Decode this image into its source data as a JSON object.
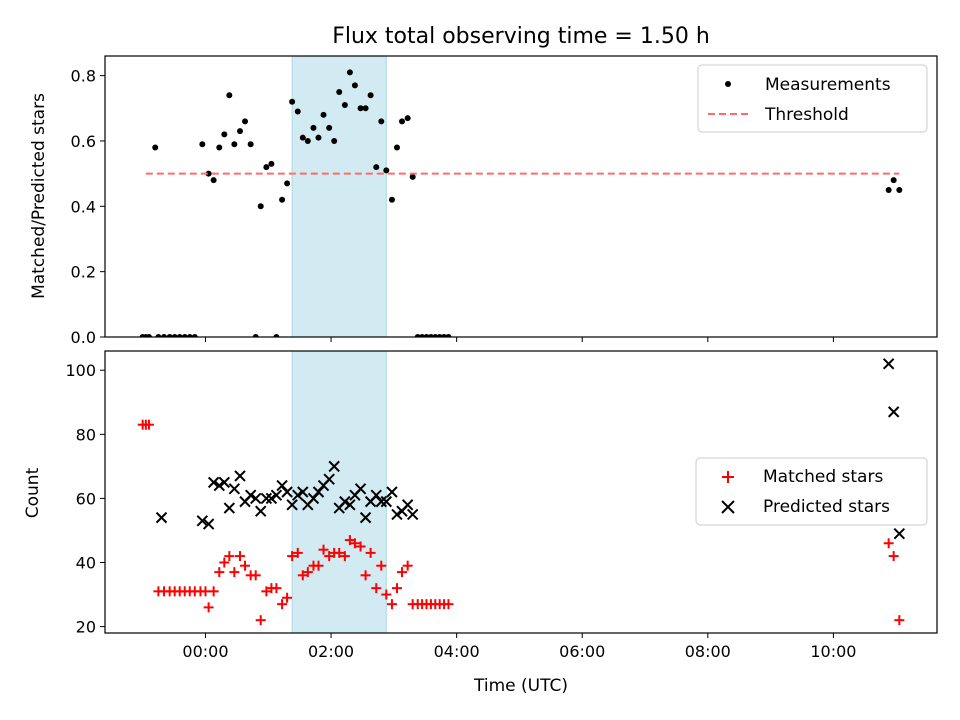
{
  "chart_data": [
    {
      "type": "scatter",
      "title": "Flux total observing time = 1.50 h",
      "xlabel": "",
      "ylabel": "Matched/Predicted stars",
      "xlim": [
        -1.6,
        11.65
      ],
      "ylim": [
        0,
        0.86
      ],
      "yticks": [
        0.0,
        0.2,
        0.4,
        0.6,
        0.8
      ],
      "ytick_labels": [
        "0.0",
        "0.2",
        "0.4",
        "0.6",
        "0.8"
      ],
      "shaded_region": {
        "x_start": 1.38,
        "x_end": 2.88,
        "color": "#add8e6"
      },
      "legend": {
        "location": "top-right",
        "entries": [
          "Measurements",
          "Threshold"
        ]
      },
      "series": [
        {
          "name": "Measurements",
          "marker": "dot",
          "color": "#000000",
          "points": [
            [
              -1.0,
              0.0
            ],
            [
              -0.95,
              0.0
            ],
            [
              -0.9,
              0.0
            ],
            [
              -0.75,
              0.0
            ],
            [
              -0.66,
              0.0
            ],
            [
              -0.57,
              0.0
            ],
            [
              -0.49,
              0.0
            ],
            [
              -0.41,
              0.0
            ],
            [
              -0.33,
              0.0
            ],
            [
              -0.25,
              0.0
            ],
            [
              -0.17,
              0.0
            ],
            [
              -0.8,
              0.58
            ],
            [
              -0.05,
              0.59
            ],
            [
              0.05,
              0.5
            ],
            [
              0.13,
              0.48
            ],
            [
              0.22,
              0.58
            ],
            [
              0.3,
              0.62
            ],
            [
              0.38,
              0.74
            ],
            [
              0.46,
              0.59
            ],
            [
              0.55,
              0.63
            ],
            [
              0.63,
              0.66
            ],
            [
              0.72,
              0.59
            ],
            [
              0.8,
              0.0
            ],
            [
              0.88,
              0.4
            ],
            [
              0.97,
              0.52
            ],
            [
              1.05,
              0.53
            ],
            [
              1.13,
              0.0
            ],
            [
              1.22,
              0.42
            ],
            [
              1.3,
              0.47
            ],
            [
              1.38,
              0.72
            ],
            [
              1.47,
              0.69
            ],
            [
              1.55,
              0.61
            ],
            [
              1.63,
              0.6
            ],
            [
              1.72,
              0.64
            ],
            [
              1.8,
              0.61
            ],
            [
              1.88,
              0.68
            ],
            [
              1.97,
              0.64
            ],
            [
              2.05,
              0.6
            ],
            [
              2.13,
              0.75
            ],
            [
              2.22,
              0.71
            ],
            [
              2.3,
              0.81
            ],
            [
              2.38,
              0.77
            ],
            [
              2.47,
              0.7
            ],
            [
              2.55,
              0.7
            ],
            [
              2.63,
              0.74
            ],
            [
              2.72,
              0.52
            ],
            [
              2.8,
              0.66
            ],
            [
              2.88,
              0.51
            ],
            [
              2.97,
              0.42
            ],
            [
              3.05,
              0.58
            ],
            [
              3.13,
              0.66
            ],
            [
              3.22,
              0.67
            ],
            [
              3.3,
              0.49
            ],
            [
              3.38,
              0.0
            ],
            [
              3.45,
              0.0
            ],
            [
              3.52,
              0.0
            ],
            [
              3.59,
              0.0
            ],
            [
              3.66,
              0.0
            ],
            [
              3.73,
              0.0
            ],
            [
              3.8,
              0.0
            ],
            [
              3.87,
              0.0
            ],
            [
              10.88,
              0.45
            ],
            [
              10.96,
              0.48
            ],
            [
              11.05,
              0.45
            ]
          ]
        },
        {
          "name": "Threshold",
          "style": "dashed",
          "color": "#ff6b6b",
          "x": [
            -0.95,
            11.05
          ],
          "y": [
            0.5,
            0.5
          ]
        }
      ]
    },
    {
      "type": "scatter",
      "title": "",
      "xlabel": "Time (UTC)",
      "ylabel": "Count",
      "xlim": [
        -1.6,
        11.65
      ],
      "ylim": [
        18,
        106
      ],
      "yticks": [
        20,
        40,
        60,
        80,
        100
      ],
      "ytick_labels": [
        "20",
        "40",
        "60",
        "80",
        "100"
      ],
      "xticks": [
        0,
        2,
        4,
        6,
        8,
        10
      ],
      "xtick_labels": [
        "00:00",
        "02:00",
        "04:00",
        "06:00",
        "08:00",
        "10:00"
      ],
      "shaded_region": {
        "x_start": 1.38,
        "x_end": 2.88,
        "color": "#add8e6"
      },
      "legend": {
        "location": "center-right",
        "entries": [
          "Matched stars",
          "Predicted stars"
        ]
      },
      "series": [
        {
          "name": "Matched stars",
          "marker": "plus",
          "color": "#ff0000",
          "points": [
            [
              -1.0,
              83
            ],
            [
              -0.95,
              83
            ],
            [
              -0.9,
              83
            ],
            [
              -0.75,
              31
            ],
            [
              -0.66,
              31
            ],
            [
              -0.57,
              31
            ],
            [
              -0.49,
              31
            ],
            [
              -0.41,
              31
            ],
            [
              -0.33,
              31
            ],
            [
              -0.25,
              31
            ],
            [
              -0.17,
              31
            ],
            [
              -0.08,
              31
            ],
            [
              0.0,
              31
            ],
            [
              0.05,
              26
            ],
            [
              0.13,
              31
            ],
            [
              0.22,
              37
            ],
            [
              0.3,
              40
            ],
            [
              0.38,
              42
            ],
            [
              0.46,
              37
            ],
            [
              0.55,
              42
            ],
            [
              0.63,
              39
            ],
            [
              0.72,
              36
            ],
            [
              0.8,
              36
            ],
            [
              0.88,
              22
            ],
            [
              0.97,
              31
            ],
            [
              1.05,
              32
            ],
            [
              1.13,
              32
            ],
            [
              1.22,
              27
            ],
            [
              1.3,
              29
            ],
            [
              1.38,
              42
            ],
            [
              1.47,
              43
            ],
            [
              1.55,
              36
            ],
            [
              1.63,
              37
            ],
            [
              1.72,
              39
            ],
            [
              1.8,
              39
            ],
            [
              1.88,
              44
            ],
            [
              1.97,
              42
            ],
            [
              2.05,
              43
            ],
            [
              2.13,
              43
            ],
            [
              2.22,
              42
            ],
            [
              2.3,
              47
            ],
            [
              2.38,
              46
            ],
            [
              2.47,
              45
            ],
            [
              2.55,
              36
            ],
            [
              2.63,
              43
            ],
            [
              2.72,
              32
            ],
            [
              2.8,
              39
            ],
            [
              2.88,
              30
            ],
            [
              2.97,
              27
            ],
            [
              3.05,
              32
            ],
            [
              3.13,
              37
            ],
            [
              3.22,
              39
            ],
            [
              3.3,
              27
            ],
            [
              3.38,
              27
            ],
            [
              3.45,
              27
            ],
            [
              3.52,
              27
            ],
            [
              3.59,
              27
            ],
            [
              3.66,
              27
            ],
            [
              3.73,
              27
            ],
            [
              3.8,
              27
            ],
            [
              3.87,
              27
            ],
            [
              10.88,
              46
            ],
            [
              10.96,
              42
            ],
            [
              11.05,
              22
            ]
          ]
        },
        {
          "name": "Predicted stars",
          "marker": "x",
          "color": "#000000",
          "points": [
            [
              -0.7,
              54
            ],
            [
              -0.05,
              53
            ],
            [
              0.05,
              52
            ],
            [
              0.13,
              65
            ],
            [
              0.22,
              64
            ],
            [
              0.3,
              65
            ],
            [
              0.38,
              57
            ],
            [
              0.46,
              63
            ],
            [
              0.55,
              67
            ],
            [
              0.63,
              59
            ],
            [
              0.72,
              61
            ],
            [
              0.8,
              60
            ],
            [
              0.88,
              56
            ],
            [
              0.97,
              60
            ],
            [
              1.05,
              60
            ],
            [
              1.13,
              61
            ],
            [
              1.22,
              64
            ],
            [
              1.3,
              62
            ],
            [
              1.38,
              58
            ],
            [
              1.47,
              61
            ],
            [
              1.55,
              62
            ],
            [
              1.63,
              58
            ],
            [
              1.72,
              60
            ],
            [
              1.8,
              62
            ],
            [
              1.88,
              64
            ],
            [
              1.97,
              66
            ],
            [
              2.05,
              70
            ],
            [
              2.13,
              57
            ],
            [
              2.22,
              59
            ],
            [
              2.3,
              58
            ],
            [
              2.38,
              61
            ],
            [
              2.47,
              63
            ],
            [
              2.55,
              54
            ],
            [
              2.63,
              59
            ],
            [
              2.72,
              61
            ],
            [
              2.8,
              59
            ],
            [
              2.88,
              59
            ],
            [
              2.97,
              62
            ],
            [
              3.05,
              55
            ],
            [
              3.13,
              56
            ],
            [
              3.22,
              58
            ],
            [
              3.3,
              55
            ],
            [
              10.88,
              102
            ],
            [
              10.96,
              87
            ],
            [
              11.05,
              49
            ]
          ]
        }
      ]
    }
  ]
}
